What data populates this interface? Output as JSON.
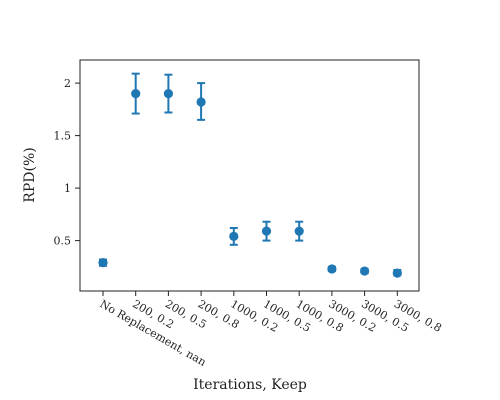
{
  "chart_data": {
    "type": "scatter",
    "title": "",
    "xlabel": "Iterations, Keep",
    "ylabel": "RPD(%)",
    "categories": [
      "No Replacement, nan",
      "200, 0.2",
      "200, 0.5",
      "200, 0.8",
      "1000, 0.2",
      "1000, 0.5",
      "1000, 0.8",
      "3000, 0.2",
      "3000, 0.5",
      "3000, 0.8"
    ],
    "values": [
      0.29,
      1.9,
      1.9,
      1.82,
      0.54,
      0.59,
      0.59,
      0.23,
      0.21,
      0.19
    ],
    "error_low": [
      0.26,
      1.71,
      1.72,
      1.65,
      0.46,
      0.5,
      0.5,
      0.21,
      0.19,
      0.17
    ],
    "error_high": [
      0.32,
      2.09,
      2.08,
      2.0,
      0.62,
      0.68,
      0.68,
      0.25,
      0.23,
      0.22
    ],
    "yticks": [
      0.5,
      1,
      1.5,
      2
    ],
    "ytick_labels": [
      "0.5",
      "1",
      "1.5",
      "2"
    ],
    "ylim": [
      0.02,
      2.22
    ],
    "grid": false,
    "legend": "none",
    "color": "#1f77b4"
  }
}
